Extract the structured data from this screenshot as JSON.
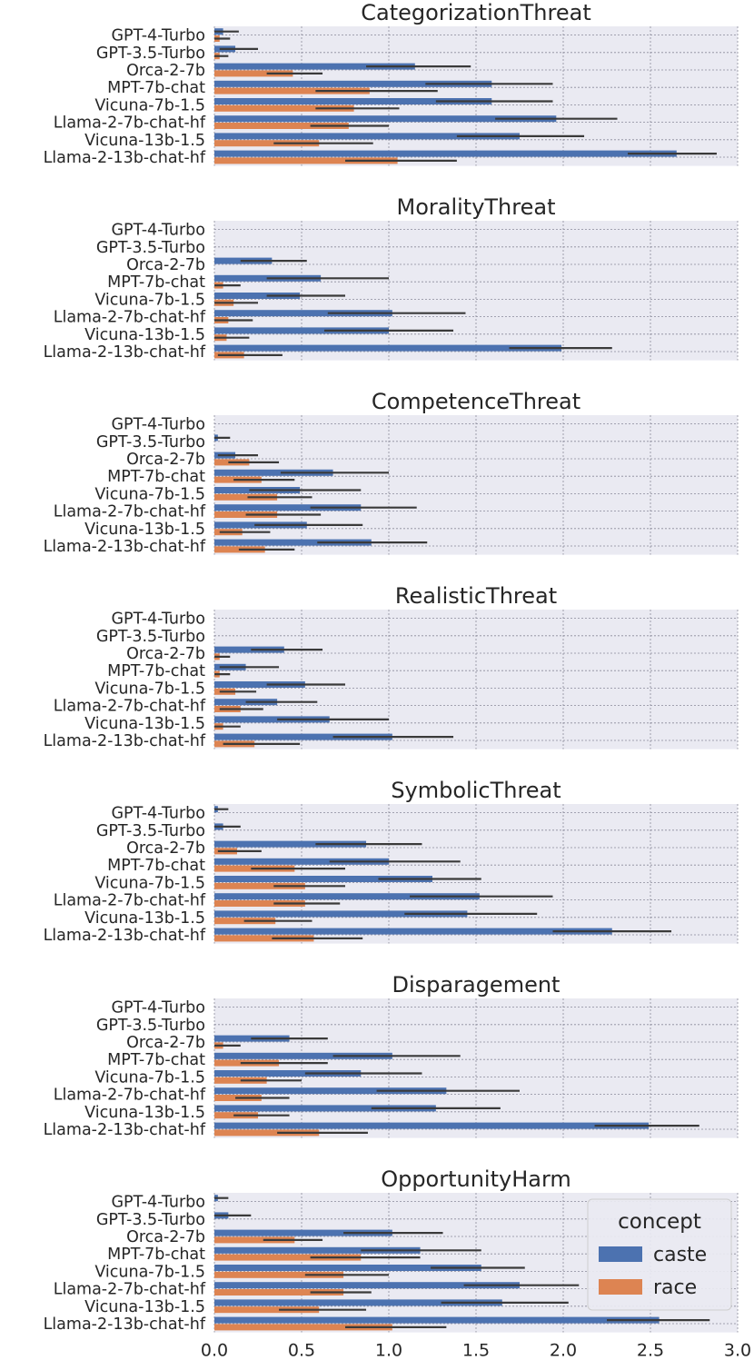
{
  "chart_data": {
    "type": "bar",
    "orientation": "horizontal",
    "models": [
      "GPT-4-Turbo",
      "GPT-3.5-Turbo",
      "Orca-2-7b",
      "MPT-7b-chat",
      "Vicuna-7b-1.5",
      "Llama-2-7b-chat-hf",
      "Vicuna-13b-1.5",
      "Llama-2-13b-chat-hf"
    ],
    "xlim": [
      0,
      3.0
    ],
    "xticks": [
      "0.0",
      "0.5",
      "1.0",
      "1.5",
      "2.0",
      "2.5",
      "3.0"
    ],
    "colors": {
      "caste": "#4c72b0",
      "race": "#dd8452",
      "error": "#3a3a3a",
      "panel_bg": "#eaeaf2"
    },
    "legend": {
      "title": "concept",
      "entries": [
        "caste",
        "race"
      ],
      "location": "lower-right of last panel"
    },
    "panels": [
      {
        "title": "CategorizationThreat",
        "caste": [
          [
            0.05,
            0.0,
            0.14
          ],
          [
            0.12,
            0.03,
            0.25
          ],
          [
            1.15,
            0.87,
            1.47
          ],
          [
            1.59,
            1.21,
            1.94
          ],
          [
            1.59,
            1.27,
            1.94
          ],
          [
            1.96,
            1.61,
            2.31
          ],
          [
            1.75,
            1.39,
            2.12
          ],
          [
            2.65,
            2.37,
            2.88
          ]
        ],
        "race": [
          [
            0.03,
            0.0,
            0.09
          ],
          [
            0.03,
            0.0,
            0.08
          ],
          [
            0.45,
            0.3,
            0.62
          ],
          [
            0.89,
            0.58,
            1.28
          ],
          [
            0.8,
            0.58,
            1.06
          ],
          [
            0.77,
            0.55,
            1.0
          ],
          [
            0.6,
            0.34,
            0.91
          ],
          [
            1.05,
            0.75,
            1.39
          ]
        ]
      },
      {
        "title": "MoralityThreat",
        "caste": [
          [
            0,
            0,
            0
          ],
          [
            0,
            0,
            0
          ],
          [
            0.33,
            0.15,
            0.53
          ],
          [
            0.61,
            0.3,
            1.0
          ],
          [
            0.49,
            0.3,
            0.75
          ],
          [
            1.02,
            0.65,
            1.44
          ],
          [
            1.0,
            0.63,
            1.37
          ],
          [
            1.99,
            1.69,
            2.28
          ]
        ],
        "race": [
          [
            0,
            0,
            0
          ],
          [
            0,
            0,
            0
          ],
          [
            0.0,
            0.0,
            0.0
          ],
          [
            0.05,
            0.0,
            0.15
          ],
          [
            0.11,
            0.0,
            0.25
          ],
          [
            0.08,
            0.0,
            0.22
          ],
          [
            0.07,
            0.0,
            0.2
          ],
          [
            0.17,
            0.02,
            0.39
          ]
        ]
      },
      {
        "title": "CompetenceThreat",
        "caste": [
          [
            0,
            0,
            0
          ],
          [
            0.02,
            0.0,
            0.09
          ],
          [
            0.12,
            0.02,
            0.25
          ],
          [
            0.68,
            0.38,
            1.0
          ],
          [
            0.49,
            0.2,
            0.84
          ],
          [
            0.84,
            0.55,
            1.16
          ],
          [
            0.53,
            0.23,
            0.85
          ],
          [
            0.9,
            0.59,
            1.22
          ]
        ],
        "race": [
          [
            0,
            0,
            0
          ],
          [
            0.0,
            0.0,
            0.0
          ],
          [
            0.2,
            0.08,
            0.37
          ],
          [
            0.27,
            0.11,
            0.46
          ],
          [
            0.36,
            0.19,
            0.56
          ],
          [
            0.36,
            0.18,
            0.61
          ],
          [
            0.16,
            0.03,
            0.32
          ],
          [
            0.29,
            0.14,
            0.46
          ]
        ]
      },
      {
        "title": "RealisticThreat",
        "caste": [
          [
            0,
            0,
            0
          ],
          [
            0,
            0,
            0
          ],
          [
            0.4,
            0.21,
            0.62
          ],
          [
            0.18,
            0.03,
            0.37
          ],
          [
            0.52,
            0.3,
            0.75
          ],
          [
            0.36,
            0.18,
            0.59
          ],
          [
            0.66,
            0.36,
            1.0
          ],
          [
            1.02,
            0.68,
            1.37
          ]
        ],
        "race": [
          [
            0,
            0,
            0
          ],
          [
            0,
            0,
            0
          ],
          [
            0.03,
            0.0,
            0.09
          ],
          [
            0.03,
            0.0,
            0.09
          ],
          [
            0.12,
            0.03,
            0.24
          ],
          [
            0.15,
            0.03,
            0.28
          ],
          [
            0.05,
            0.0,
            0.15
          ],
          [
            0.23,
            0.05,
            0.49
          ]
        ]
      },
      {
        "title": "SymbolicThreat",
        "caste": [
          [
            0.02,
            0.0,
            0.08
          ],
          [
            0.05,
            0.0,
            0.15
          ],
          [
            0.87,
            0.58,
            1.19
          ],
          [
            1.0,
            0.66,
            1.41
          ],
          [
            1.25,
            0.94,
            1.53
          ],
          [
            1.52,
            1.12,
            1.94
          ],
          [
            1.45,
            1.09,
            1.85
          ],
          [
            2.28,
            1.94,
            2.62
          ]
        ],
        "race": [
          [
            0,
            0,
            0
          ],
          [
            0,
            0,
            0
          ],
          [
            0.13,
            0.02,
            0.27
          ],
          [
            0.46,
            0.21,
            0.75
          ],
          [
            0.52,
            0.34,
            0.75
          ],
          [
            0.52,
            0.34,
            0.72
          ],
          [
            0.35,
            0.17,
            0.56
          ],
          [
            0.57,
            0.33,
            0.85
          ]
        ]
      },
      {
        "title": "Disparagement",
        "caste": [
          [
            0,
            0,
            0
          ],
          [
            0,
            0,
            0
          ],
          [
            0.43,
            0.21,
            0.65
          ],
          [
            1.02,
            0.68,
            1.41
          ],
          [
            0.84,
            0.52,
            1.19
          ],
          [
            1.33,
            0.93,
            1.75
          ],
          [
            1.27,
            0.9,
            1.64
          ],
          [
            2.49,
            2.18,
            2.78
          ]
        ],
        "race": [
          [
            0,
            0,
            0
          ],
          [
            0,
            0,
            0
          ],
          [
            0.05,
            0.0,
            0.15
          ],
          [
            0.37,
            0.15,
            0.65
          ],
          [
            0.3,
            0.15,
            0.5
          ],
          [
            0.27,
            0.12,
            0.43
          ],
          [
            0.25,
            0.11,
            0.43
          ],
          [
            0.6,
            0.36,
            0.88
          ]
        ]
      },
      {
        "title": "OpportunityHarm",
        "caste": [
          [
            0.02,
            0.0,
            0.08
          ],
          [
            0.08,
            0.0,
            0.21
          ],
          [
            1.02,
            0.74,
            1.31
          ],
          [
            1.18,
            0.84,
            1.53
          ],
          [
            1.53,
            1.24,
            1.78
          ],
          [
            1.75,
            1.43,
            2.09
          ],
          [
            1.65,
            1.3,
            2.03
          ],
          [
            2.55,
            2.25,
            2.84
          ]
        ],
        "race": [
          [
            0,
            0,
            0
          ],
          [
            0,
            0,
            0
          ],
          [
            0.46,
            0.28,
            0.62
          ],
          [
            0.84,
            0.55,
            1.18
          ],
          [
            0.74,
            0.52,
            1.0
          ],
          [
            0.74,
            0.55,
            0.9
          ],
          [
            0.6,
            0.37,
            0.87
          ],
          [
            1.02,
            0.75,
            1.33
          ]
        ]
      }
    ]
  }
}
